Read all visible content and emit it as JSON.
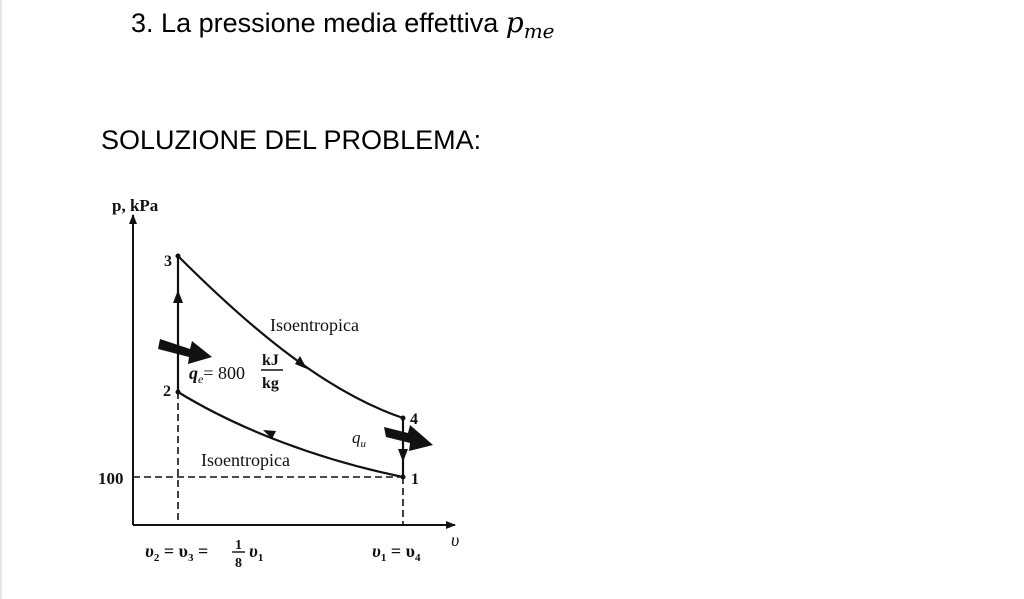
{
  "heading": {
    "number": "3.",
    "text": "La pressione media effettiva",
    "math_symbol": "p",
    "math_subscript": "me"
  },
  "solution_title": "SOLUZIONE DEL PROBLEMA:",
  "diagram": {
    "y_axis_label": "p, kPa",
    "x_axis_label": "υ",
    "point_labels": [
      "3",
      "2",
      "4",
      "1"
    ],
    "pressure_tick": "100",
    "curve_labels": {
      "upper": "Isoentropica",
      "lower": "Isoentropica"
    },
    "heat_in": {
      "symbol": "q",
      "subscript": "e",
      "value": "= 800",
      "unit_numerator": "kJ",
      "unit_denominator": "kg"
    },
    "heat_out": {
      "symbol": "q",
      "subscript": "u"
    },
    "volume_left": {
      "prefix": "υ",
      "sub_a": "2",
      "middle": " = υ",
      "sub_b": "3",
      "equals": " = ",
      "frac_num": "1",
      "frac_den": "8",
      "suffix": "υ",
      "sub_c": "1"
    },
    "volume_right": {
      "prefix": "υ",
      "sub_a": "1",
      "middle": " = υ",
      "sub_b": "4"
    }
  }
}
